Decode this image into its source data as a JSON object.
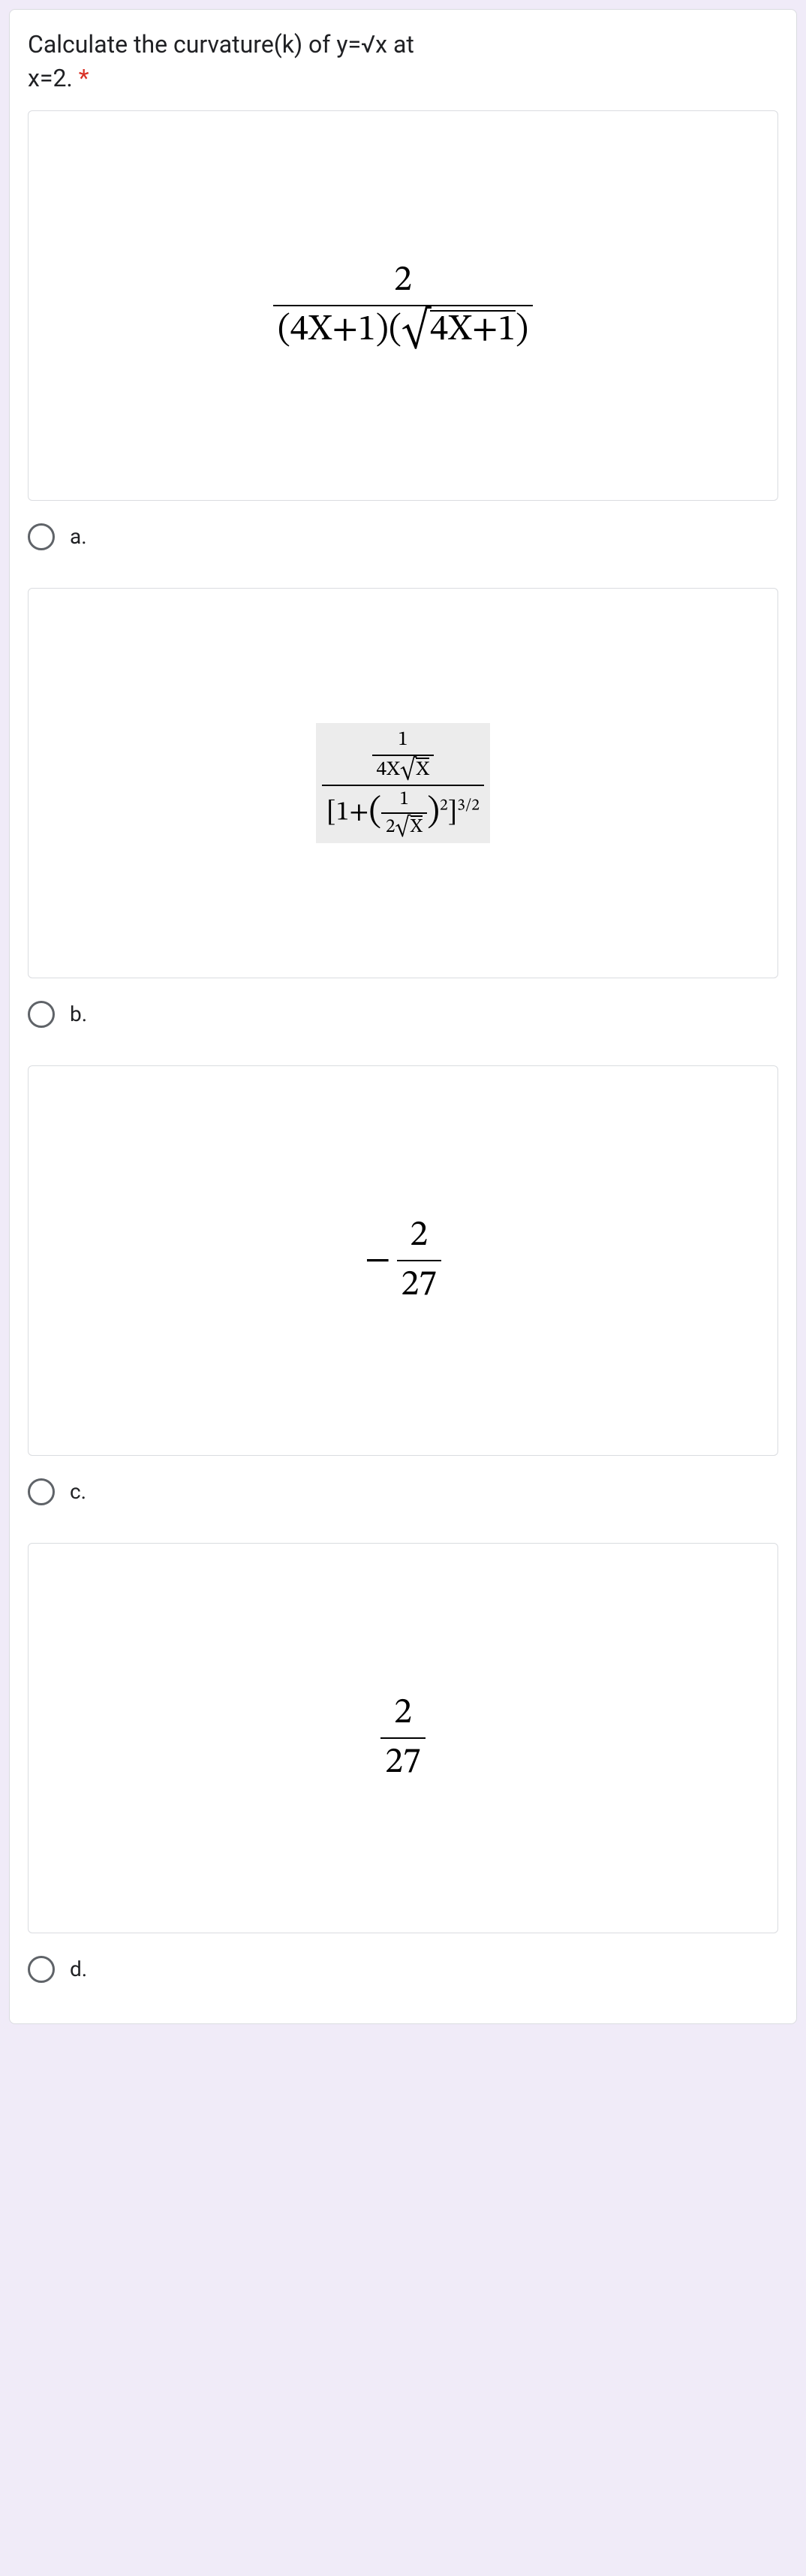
{
  "question": {
    "text_line1": "Calculate the curvature(k) of y=√x at",
    "text_line2": "x=2.",
    "required_marker": "*"
  },
  "options": {
    "a": {
      "label": "a.",
      "formula": {
        "type": "fraction",
        "numerator": "2",
        "denominator_left": "(4X+1)(",
        "denominator_sqrt": "4X+1",
        "denominator_right": ")",
        "font_size_num": 48,
        "font_size_den": 44
      }
    },
    "b": {
      "label": "b.",
      "formula": {
        "type": "nested_fraction",
        "top_num": "1",
        "top_den_left": "4X",
        "top_den_sqrt": "X",
        "bottom_left": "[1+",
        "bottom_inner_num": "1",
        "bottom_inner_den_left": "2",
        "bottom_inner_den_sqrt": "X",
        "bottom_exp": "2",
        "bottom_outer_exp": "3/2",
        "bottom_close": "]",
        "highlight_bg": "#ececec"
      }
    },
    "c": {
      "label": "c.",
      "formula": {
        "type": "neg_fraction",
        "sign": "−",
        "numerator": "2",
        "denominator": "27"
      }
    },
    "d": {
      "label": "d.",
      "formula": {
        "type": "simple_fraction",
        "numerator": "2",
        "denominator": "27"
      }
    }
  },
  "style": {
    "background": "#f0ebf8",
    "card_bg": "#ffffff",
    "border_color": "#dadce0",
    "text_color": "#202124",
    "required_color": "#d93025",
    "radio_border": "#5f6368"
  }
}
